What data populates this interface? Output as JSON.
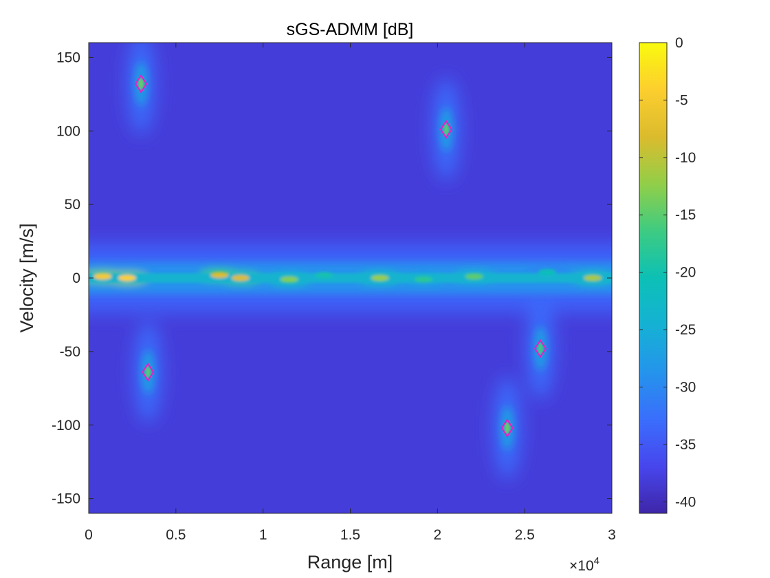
{
  "chart_data": {
    "type": "heatmap",
    "title": "sGS-ADMM [dB]",
    "xlabel": "Range [m]",
    "ylabel": "Velocity [m/s]",
    "x_exponent_label": "×10",
    "x_exponent_power": "4",
    "xlim": [
      0,
      3
    ],
    "ylim": [
      -160,
      160
    ],
    "xticks": [
      0,
      0.5,
      1,
      1.5,
      2,
      2.5,
      3
    ],
    "xtick_labels": [
      "0",
      "0.5",
      "1",
      "1.5",
      "2",
      "2.5",
      "3"
    ],
    "yticks": [
      150,
      100,
      50,
      0,
      -50,
      -100,
      -150
    ],
    "ytick_labels": [
      "150",
      "100",
      "50",
      "0",
      "-50",
      "-100",
      "-150"
    ],
    "colorbar": {
      "colormap": "parula",
      "range": [
        -41,
        0
      ],
      "ticks": [
        0,
        -5,
        -10,
        -15,
        -20,
        -25,
        -30,
        -35,
        -40
      ],
      "tick_labels": [
        "0",
        "-5",
        "-10",
        "-15",
        "-20",
        "-25",
        "-30",
        "-35",
        "-40"
      ]
    },
    "background_db": -38,
    "zero_velocity_clutter": {
      "velocity": 0,
      "x_range": [
        0,
        3
      ],
      "peaks": [
        {
          "x": 0.08,
          "y": 1,
          "db": -5
        },
        {
          "x": 0.22,
          "y": 0,
          "db": -4
        },
        {
          "x": 0.75,
          "y": 2,
          "db": -8
        },
        {
          "x": 0.87,
          "y": 0,
          "db": -8
        },
        {
          "x": 1.15,
          "y": -1,
          "db": -13
        },
        {
          "x": 1.35,
          "y": 2,
          "db": -20
        },
        {
          "x": 1.67,
          "y": 0,
          "db": -12
        },
        {
          "x": 1.92,
          "y": -1,
          "db": -18
        },
        {
          "x": 2.21,
          "y": 1,
          "db": -15
        },
        {
          "x": 2.63,
          "y": 4,
          "db": -21
        },
        {
          "x": 2.89,
          "y": 0,
          "db": -11
        }
      ]
    },
    "targets": [
      {
        "x": 0.3,
        "y": 132,
        "db": -14
      },
      {
        "x": 2.05,
        "y": 101,
        "db": -15
      },
      {
        "x": 0.34,
        "y": -64,
        "db": -15
      },
      {
        "x": 2.59,
        "y": -48,
        "db": -16
      },
      {
        "x": 2.4,
        "y": -102,
        "db": -14
      }
    ],
    "marker": {
      "shape": "diamond",
      "color": "#e81ec8"
    },
    "grid": false
  }
}
